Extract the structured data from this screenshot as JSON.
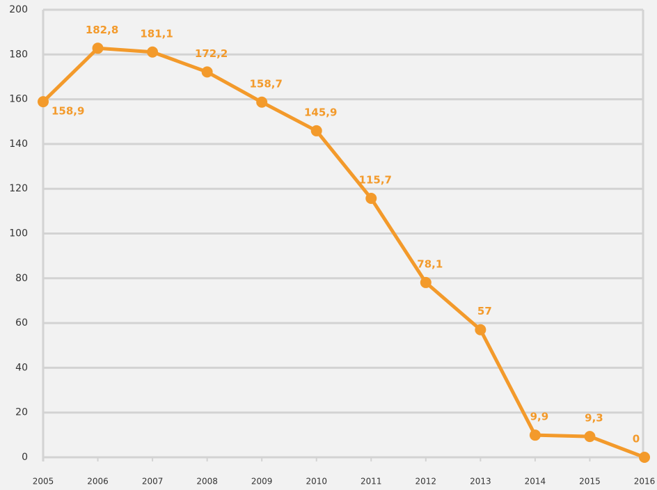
{
  "chart_data": {
    "type": "line",
    "x": [
      2005,
      2006,
      2007,
      2008,
      2009,
      2010,
      2011,
      2012,
      2013,
      2014,
      2015,
      2016
    ],
    "values": [
      158.9,
      182.8,
      181.1,
      172.2,
      158.7,
      145.9,
      115.7,
      78.1,
      57,
      9.9,
      9.3,
      0
    ],
    "value_labels": [
      "158,9",
      "182,8",
      "181,1",
      "172,2",
      "158,7",
      "145,9",
      "115,7",
      "78,1",
      "57",
      "9,9",
      "9,3",
      "0"
    ],
    "color": "#f39a2b",
    "xlim": [
      2005,
      2016
    ],
    "xticks": [
      2005,
      2006,
      2007,
      2008,
      2009,
      2010,
      2011,
      2012,
      2013,
      2014,
      2015,
      2016
    ],
    "ylim": [
      0,
      200
    ],
    "yticks": [
      0,
      20,
      40,
      60,
      80,
      100,
      120,
      140,
      160,
      180,
      200
    ],
    "grid": true
  }
}
